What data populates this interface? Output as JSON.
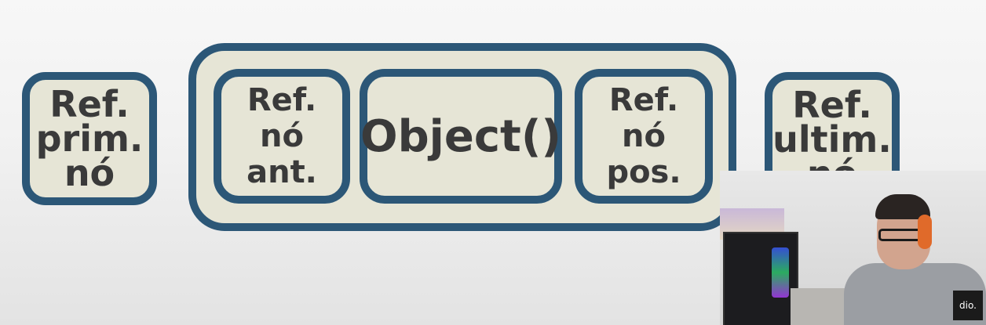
{
  "diagram": {
    "ref_first": "Ref.\nprim.\nnó",
    "node": {
      "ref_prev": "Ref. nó\nant.",
      "object": "Object()",
      "ref_next": "Ref. nó\npos."
    },
    "ref_last": "Ref.\nultim.\nnó"
  },
  "webcam": {
    "logo_text": "dio."
  },
  "colors": {
    "box_border": "#2c5777",
    "box_fill": "#e6e5d6",
    "text": "#3a3a3a"
  }
}
